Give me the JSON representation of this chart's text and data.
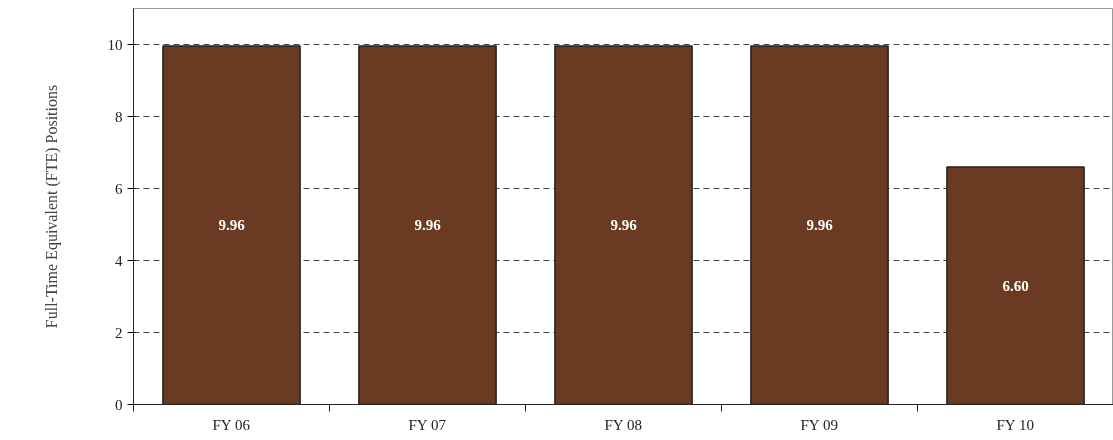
{
  "chart_data": {
    "type": "bar",
    "ylabel": "Full-Time Equivalent (FTE) Positions",
    "categories": [
      "FY 06",
      "FY 07",
      "FY 08",
      "FY 09",
      "FY 10"
    ],
    "values": [
      9.96,
      9.96,
      9.96,
      9.96,
      6.6
    ],
    "value_labels": [
      "9.96",
      "9.96",
      "9.96",
      "9.96",
      "6.60"
    ],
    "color": "#6b3a22",
    "ylim": [
      0,
      11
    ],
    "yticks": [
      0,
      2,
      4,
      6,
      8,
      10
    ],
    "grid": "y"
  }
}
